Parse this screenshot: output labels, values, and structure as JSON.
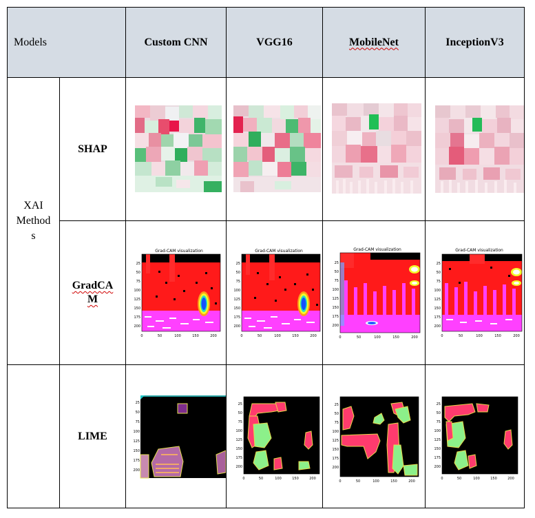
{
  "table": {
    "corner_label": "Models",
    "columns": [
      "Custom CNN",
      "VGG16",
      "MobileNet",
      "InceptionV3"
    ],
    "group_label": [
      "XAI",
      "Method",
      "s"
    ],
    "rows": [
      {
        "label_lines": [
          "SHAP"
        ]
      },
      {
        "label_lines": [
          "GradCA",
          "M"
        ]
      },
      {
        "label_lines": [
          "LIME"
        ]
      }
    ]
  },
  "gradcam": {
    "title": "Grad-CAM visualization",
    "y_ticks": [
      "25",
      "50",
      "75",
      "100",
      "125",
      "150",
      "175",
      "200"
    ],
    "x_ticks": [
      "0",
      "50",
      "100",
      "150",
      "200"
    ]
  },
  "lime": {
    "y_ticks": [
      "25",
      "50",
      "75",
      "100",
      "125",
      "150",
      "175",
      "200"
    ],
    "x_ticks": [
      "0",
      "50",
      "100",
      "150",
      "200"
    ]
  },
  "colors": {
    "header_bg": "#d5dce4",
    "pink": "#e8708a",
    "green": "#3cb865",
    "heat_red": "#ff1a1a",
    "heat_magenta": "#ff40ff"
  }
}
